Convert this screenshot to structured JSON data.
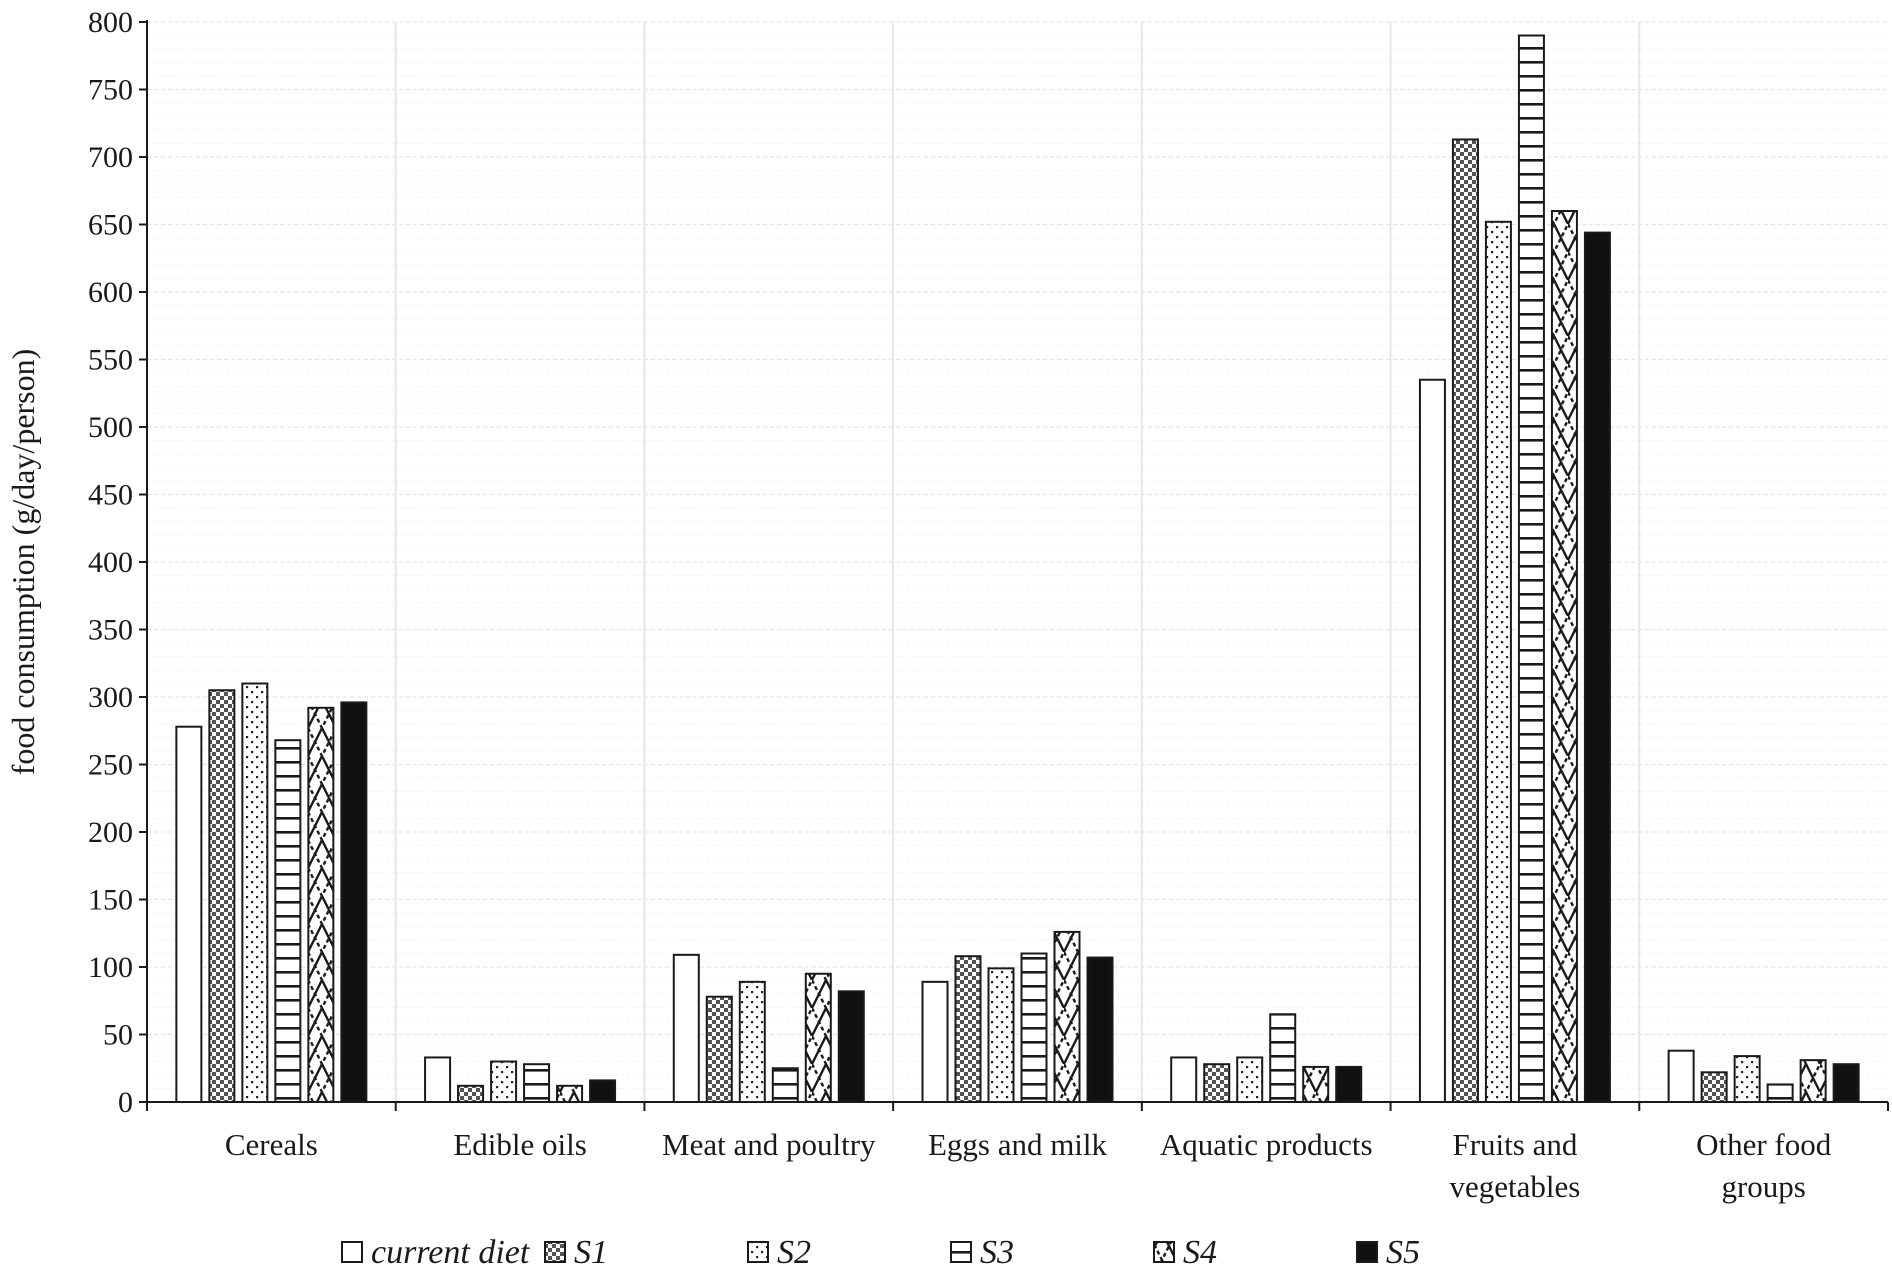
{
  "chart_data": {
    "type": "bar",
    "title": "",
    "xlabel": "",
    "ylabel": "food consumption (g/day/person)",
    "ylim": [
      0,
      800
    ],
    "yticks": [
      0,
      50,
      100,
      150,
      200,
      250,
      300,
      350,
      400,
      450,
      500,
      550,
      600,
      650,
      700,
      750,
      800
    ],
    "grid": true,
    "legend_position": "bottom",
    "categories": [
      [
        "Cereals"
      ],
      [
        "Edible oils"
      ],
      [
        "Meat and poultry"
      ],
      [
        "Eggs and milk"
      ],
      [
        "Aquatic products"
      ],
      [
        "Fruits and",
        "vegetables"
      ],
      [
        "Other food",
        "groups"
      ]
    ],
    "series": [
      {
        "name": "current diet",
        "pattern": "blank",
        "values": [
          278,
          33,
          109,
          89,
          33,
          535,
          38
        ]
      },
      {
        "name": "S1",
        "pattern": "checker",
        "values": [
          305,
          12,
          78,
          108,
          28,
          713,
          22
        ]
      },
      {
        "name": "S2",
        "pattern": "dots",
        "values": [
          310,
          30,
          89,
          99,
          33,
          652,
          34
        ]
      },
      {
        "name": "S3",
        "pattern": "hlines",
        "values": [
          268,
          28,
          25,
          110,
          65,
          790,
          13
        ]
      },
      {
        "name": "S4",
        "pattern": "zigzag",
        "values": [
          292,
          12,
          95,
          126,
          26,
          660,
          31
        ]
      },
      {
        "name": "S5",
        "pattern": "solid",
        "values": [
          296,
          16,
          82,
          107,
          26,
          644,
          28
        ]
      }
    ],
    "colors": {
      "stroke": "#1a1a1a",
      "solid": "#111111",
      "checker": "#555555",
      "grid_major": "#e3e3e3",
      "grid_minor": "#efefef"
    }
  }
}
